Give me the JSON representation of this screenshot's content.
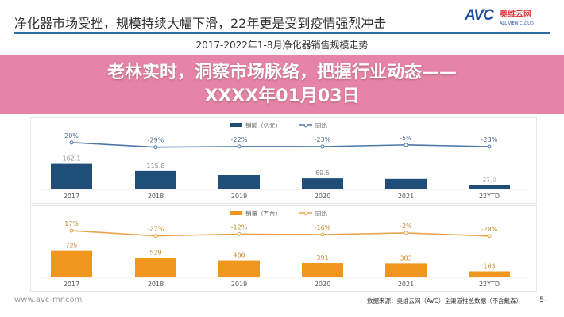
{
  "header": {
    "title": "净化器市场受挫，规模持续大幅下滑，22年更是受到疫情强烈冲击",
    "logo": {
      "mark": "AVC",
      "cn": "奥维云网",
      "en": "ALL VIEW CLOUD"
    }
  },
  "watermark": "AVC 奥维云网",
  "chart_title": "2017-2022年1-8月净化器销售规模走势",
  "chart_data": [
    {
      "type": "bar",
      "categories": [
        "2017",
        "2018",
        "2019",
        "2020",
        "2021",
        "22YTD"
      ],
      "series": [
        {
          "name": "销额（亿元）",
          "type": "bar",
          "values": [
            162.1,
            115.8,
            null,
            69.5,
            null,
            27.0
          ],
          "labels": [
            "162.1",
            "115.8",
            "",
            "69.5",
            "",
            "27.0"
          ],
          "color": "#1f4e79"
        },
        {
          "name": "同比",
          "type": "line",
          "values": [
            20,
            -29,
            -22,
            -23,
            -5,
            -23
          ],
          "labels": [
            "20%",
            "-29%",
            "-22%",
            "-23%",
            "-5%",
            "-23%"
          ],
          "color": "#4a78a8"
        }
      ],
      "legend": "top"
    },
    {
      "type": "bar",
      "categories": [
        "2017",
        "2018",
        "2019",
        "2020",
        "2021",
        "22YTD"
      ],
      "series": [
        {
          "name": "销量（万台）",
          "type": "bar",
          "values": [
            725,
            529,
            466,
            391,
            383,
            163
          ],
          "labels": [
            "725",
            "529",
            "466",
            "391",
            "383",
            "163"
          ],
          "color": "#f0961e"
        },
        {
          "name": "同比",
          "type": "line",
          "values": [
            17,
            -27,
            -12,
            -16,
            -2,
            -28
          ],
          "labels": [
            "17%",
            "-27%",
            "-12%",
            "-16%",
            "-2%",
            "-28%"
          ],
          "color": "#e8a44a"
        }
      ],
      "legend": "top"
    }
  ],
  "banner": {
    "line1": "老林实时，洞察市场脉络，把握行业动态——",
    "line2": "XXXX年01月03日",
    "color": "#e27098"
  },
  "footer": {
    "website": "www.avc-mr.com",
    "source": "数据来源：奥维云网（AVC）全渠道推总数据（不含戴森）",
    "page": "-5-"
  }
}
